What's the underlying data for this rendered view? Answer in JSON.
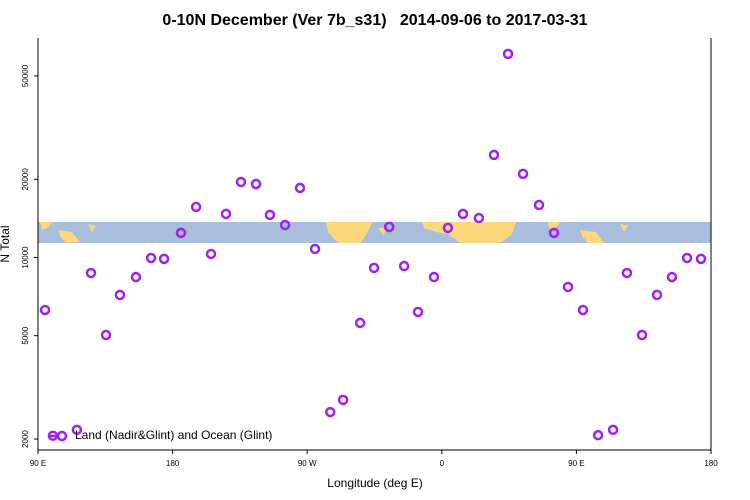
{
  "chart_data": {
    "type": "scatter",
    "title": "0-10N December (Ver 7b_s31)   2014-09-06 to 2017-03-31",
    "x_label": "Longitude (deg E)",
    "y_label": "N Total",
    "log_y": true,
    "xlim": [
      90,
      540
    ],
    "xticks": [
      {
        "value": 90,
        "label": "90 E"
      },
      {
        "value": 180,
        "label": "180"
      },
      {
        "value": 270,
        "label": "90 W"
      },
      {
        "value": 360,
        "label": "0"
      },
      {
        "value": 450,
        "label": "90 E"
      },
      {
        "value": 540,
        "label": "180"
      }
    ],
    "ylim": [
      1815,
      70000
    ],
    "yticks": [
      2000,
      5000,
      10000,
      20000,
      50000
    ],
    "legend": "bottom-left",
    "series": [
      {
        "name": "Land (Nadir&Glint) and Ocean (Glint)",
        "color": "#a020f0",
        "x": [
          94.7,
          100,
          116,
          125.4,
          135.5,
          144.8,
          155.5,
          165.6,
          174.3,
          185.6,
          195.7,
          205.7,
          215.7,
          225.7,
          235.8,
          245.1,
          255.2,
          265.2,
          275.2,
          285.4,
          294,
          305.4,
          314.7,
          324.8,
          334.8,
          344.1,
          354.8,
          364.1,
          374.2,
          384.8,
          394.9,
          404.3,
          414.3,
          425,
          435,
          444.4,
          454.4,
          464.5,
          474.5,
          483.8,
          493.9,
          503.9,
          513.9,
          524,
          533.3
        ],
        "values": [
          6280,
          2060,
          2170,
          8720,
          5030,
          7180,
          8410,
          9960,
          9880,
          12440,
          15660,
          10320,
          14720,
          19540,
          19190,
          14590,
          13340,
          18530,
          10790,
          2540,
          2830,
          5600,
          9120,
          13120,
          9270,
          6170,
          8410,
          13000,
          14720,
          14190,
          24830,
          60800,
          20990,
          15930,
          12440,
          7700,
          6280,
          2070,
          2170,
          8720,
          5030,
          7180,
          8410,
          9960,
          9880
        ]
      }
    ]
  }
}
